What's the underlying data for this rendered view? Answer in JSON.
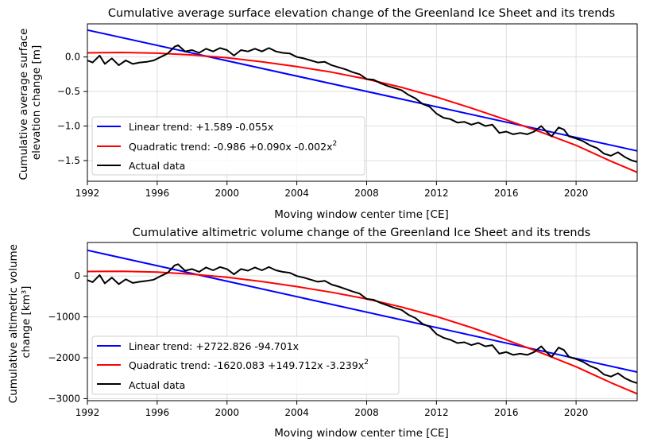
{
  "charts": [
    {
      "type": "line",
      "title": "Cumulative average surface elevation change of the Greenland Ice Sheet and its trends",
      "xlabel": "Moving window center time [CE]",
      "ylabel_lines": [
        "Cumulative average surface",
        "elevation change [m]"
      ],
      "xlim": [
        1992,
        2023.5
      ],
      "ylim": [
        -1.8,
        0.48
      ],
      "xticks": [
        1992,
        1996,
        2000,
        2004,
        2008,
        2012,
        2016,
        2020
      ],
      "yticks": [
        0.0,
        -0.5,
        -1.0,
        -1.5
      ],
      "ytick_labels": [
        "0.0",
        "−0.5",
        "−1.0",
        "−1.5"
      ],
      "legend": [
        {
          "label": "Linear trend: +1.589 -0.055x",
          "color": "#0000ff"
        },
        {
          "label": "Quadratic trend: -0.986 +0.090x -0.002x",
          "sup": "2",
          "color": "#ff0000"
        },
        {
          "label": "Actual data",
          "color": "#000000"
        }
      ],
      "series": [
        {
          "name": "Linear trend",
          "color": "#0000ff",
          "x": [
            1992,
            2023.5
          ],
          "y": [
            0.39,
            -1.36
          ]
        },
        {
          "name": "Quadratic trend",
          "color": "#ff0000",
          "x": [
            1992,
            1994,
            1996,
            1998,
            2000,
            2002,
            2004,
            2006,
            2008,
            2010,
            2012,
            2014,
            2016,
            2018,
            2020,
            2022,
            2023.5
          ],
          "y": [
            0.06,
            0.065,
            0.055,
            0.03,
            -0.01,
            -0.07,
            -0.14,
            -0.22,
            -0.32,
            -0.44,
            -0.58,
            -0.74,
            -0.91,
            -1.09,
            -1.28,
            -1.51,
            -1.67
          ]
        },
        {
          "name": "Actual data",
          "color": "#000000",
          "x": [
            1992.0,
            1992.3,
            1992.7,
            1993.0,
            1993.4,
            1993.8,
            1994.2,
            1994.6,
            1995.0,
            1995.4,
            1995.8,
            1996.2,
            1996.6,
            1997.0,
            1997.2,
            1997.6,
            1998.0,
            1998.4,
            1998.8,
            1999.2,
            1999.6,
            2000.0,
            2000.4,
            2000.8,
            2001.2,
            2001.6,
            2002.0,
            2002.4,
            2002.8,
            2003.2,
            2003.6,
            2004.0,
            2004.4,
            2004.8,
            2005.2,
            2005.6,
            2006.0,
            2006.4,
            2006.8,
            2007.2,
            2007.6,
            2008.0,
            2008.4,
            2008.8,
            2009.2,
            2009.6,
            2010.0,
            2010.4,
            2010.8,
            2011.2,
            2011.6,
            2012.0,
            2012.4,
            2012.8,
            2013.2,
            2013.6,
            2014.0,
            2014.4,
            2014.8,
            2015.2,
            2015.6,
            2016.0,
            2016.4,
            2016.8,
            2017.2,
            2017.6,
            2018.0,
            2018.3,
            2018.6,
            2019.0,
            2019.3,
            2019.6,
            2020.0,
            2020.4,
            2020.8,
            2021.2,
            2021.6,
            2022.0,
            2022.4,
            2022.8,
            2023.2,
            2023.5
          ],
          "y": [
            -0.05,
            -0.08,
            0.02,
            -0.1,
            -0.02,
            -0.12,
            -0.05,
            -0.1,
            -0.08,
            -0.07,
            -0.05,
            0.0,
            0.05,
            0.15,
            0.17,
            0.08,
            0.1,
            0.06,
            0.12,
            0.08,
            0.13,
            0.1,
            0.02,
            0.1,
            0.08,
            0.12,
            0.08,
            0.13,
            0.08,
            0.06,
            0.05,
            0.0,
            -0.02,
            -0.05,
            -0.08,
            -0.07,
            -0.12,
            -0.15,
            -0.18,
            -0.22,
            -0.25,
            -0.32,
            -0.33,
            -0.38,
            -0.42,
            -0.45,
            -0.48,
            -0.55,
            -0.6,
            -0.68,
            -0.72,
            -0.82,
            -0.88,
            -0.9,
            -0.95,
            -0.94,
            -0.98,
            -0.95,
            -1.0,
            -0.98,
            -1.1,
            -1.08,
            -1.12,
            -1.1,
            -1.12,
            -1.08,
            -1.0,
            -1.08,
            -1.15,
            -1.02,
            -1.05,
            -1.15,
            -1.18,
            -1.22,
            -1.28,
            -1.32,
            -1.4,
            -1.43,
            -1.38,
            -1.45,
            -1.5,
            -1.52
          ]
        }
      ]
    },
    {
      "type": "line",
      "title": "Cumulative altimetric volume change of the Greenland Ice Sheet and its trends",
      "xlabel": "Moving window center time [CE]",
      "ylabel_lines": [
        "Cumulative altimetric volume",
        "change [km³]"
      ],
      "xlim": [
        1992,
        2023.5
      ],
      "ylim": [
        -3050,
        820
      ],
      "xticks": [
        1992,
        1996,
        2000,
        2004,
        2008,
        2012,
        2016,
        2020
      ],
      "yticks": [
        0,
        -1000,
        -2000,
        -3000
      ],
      "ytick_labels": [
        "0",
        "−1000",
        "−2000",
        "−3000"
      ],
      "legend": [
        {
          "label": "Linear trend: +2722.826 -94.701x",
          "color": "#0000ff"
        },
        {
          "label": "Quadratic trend: -1620.083 +149.712x -3.239x",
          "sup": "2",
          "color": "#ff0000"
        },
        {
          "label": "Actual data",
          "color": "#000000"
        }
      ],
      "series": [
        {
          "name": "Linear trend",
          "color": "#0000ff",
          "x": [
            1992,
            2023.5
          ],
          "y": [
            630,
            -2350
          ]
        },
        {
          "name": "Quadratic trend",
          "color": "#ff0000",
          "x": [
            1992,
            1994,
            1996,
            1998,
            2000,
            2002,
            2004,
            2006,
            2008,
            2010,
            2012,
            2014,
            2016,
            2018,
            2020,
            2022,
            2023.5
          ],
          "y": [
            110,
            115,
            95,
            45,
            -30,
            -135,
            -260,
            -400,
            -560,
            -760,
            -990,
            -1260,
            -1560,
            -1880,
            -2220,
            -2610,
            -2880
          ]
        },
        {
          "name": "Actual data",
          "color": "#000000",
          "x": [
            1992.0,
            1992.3,
            1992.7,
            1993.0,
            1993.4,
            1993.8,
            1994.2,
            1994.6,
            1995.0,
            1995.4,
            1995.8,
            1996.2,
            1996.6,
            1997.0,
            1997.2,
            1997.6,
            1998.0,
            1998.4,
            1998.8,
            1999.2,
            1999.6,
            2000.0,
            2000.4,
            2000.8,
            2001.2,
            2001.6,
            2002.0,
            2002.4,
            2002.8,
            2003.2,
            2003.6,
            2004.0,
            2004.4,
            2004.8,
            2005.2,
            2005.6,
            2006.0,
            2006.4,
            2006.8,
            2007.2,
            2007.6,
            2008.0,
            2008.4,
            2008.8,
            2009.2,
            2009.6,
            2010.0,
            2010.4,
            2010.8,
            2011.2,
            2011.6,
            2012.0,
            2012.4,
            2012.8,
            2013.2,
            2013.6,
            2014.0,
            2014.4,
            2014.8,
            2015.2,
            2015.6,
            2016.0,
            2016.4,
            2016.8,
            2017.2,
            2017.6,
            2018.0,
            2018.3,
            2018.6,
            2019.0,
            2019.3,
            2019.6,
            2020.0,
            2020.4,
            2020.8,
            2021.2,
            2021.6,
            2022.0,
            2022.4,
            2022.8,
            2023.2,
            2023.5
          ],
          "y": [
            -100,
            -150,
            20,
            -180,
            -40,
            -200,
            -80,
            -170,
            -140,
            -120,
            -90,
            0,
            80,
            260,
            290,
            130,
            170,
            100,
            210,
            140,
            220,
            170,
            40,
            170,
            130,
            210,
            140,
            220,
            140,
            100,
            80,
            0,
            -40,
            -90,
            -140,
            -120,
            -210,
            -260,
            -320,
            -380,
            -430,
            -560,
            -580,
            -660,
            -720,
            -780,
            -830,
            -950,
            -1030,
            -1170,
            -1240,
            -1420,
            -1510,
            -1560,
            -1640,
            -1620,
            -1690,
            -1640,
            -1720,
            -1690,
            -1900,
            -1860,
            -1930,
            -1900,
            -1930,
            -1860,
            -1720,
            -1860,
            -1980,
            -1750,
            -1810,
            -1980,
            -2030,
            -2100,
            -2200,
            -2270,
            -2410,
            -2460,
            -2380,
            -2500,
            -2580,
            -2620
          ]
        }
      ]
    }
  ]
}
